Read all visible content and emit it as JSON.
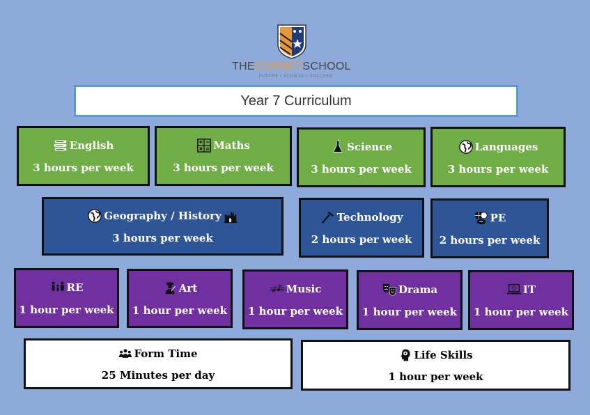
{
  "school": {
    "name_part1": "THE",
    "name_highlight": "CORBET",
    "name_part2": "SCHOOL",
    "tagline": "INSPIRE • ACHIEVE • SUCCEED"
  },
  "title": "Year 7 Curriculum",
  "colors": {
    "background": "#8eaadb",
    "core": "#70ad47",
    "humanities": "#2e5597",
    "arts": "#7030a0",
    "pastoral": "#ffffff"
  },
  "subjects": {
    "english": {
      "name": "English",
      "hours": "3 hours per week",
      "icon": "books-icon"
    },
    "maths": {
      "name": "Maths",
      "hours": "3 hours per week",
      "icon": "calculator-icon"
    },
    "science": {
      "name": "Science",
      "hours": "3 hours per week",
      "icon": "flask-icon"
    },
    "languages": {
      "name": "Languages",
      "hours": "3 hours per week",
      "icon": "globe-icon"
    },
    "geography_history": {
      "name": "Geography / History",
      "hours": "3 hours per week",
      "icon": "globe-castle-icon"
    },
    "technology": {
      "name": "Technology",
      "hours": "2 hours per week",
      "icon": "hammer-icon"
    },
    "pe": {
      "name": "PE",
      "hours": "2 hours per week",
      "icon": "balls-icon"
    },
    "re": {
      "name": "RE",
      "hours": "1 hour per week",
      "icon": "family-icon"
    },
    "art": {
      "name": "Art",
      "hours": "1 hour per week",
      "icon": "artist-icon"
    },
    "music": {
      "name": "Music",
      "hours": "1 hour per week",
      "icon": "music-notes-icon"
    },
    "drama": {
      "name": "Drama",
      "hours": "1 hour per week",
      "icon": "theatre-masks-icon"
    },
    "it": {
      "name": "IT",
      "hours": "1 hour per week",
      "icon": "laptop-icon"
    },
    "form_time": {
      "name": "Form Time",
      "hours": "25 Minutes per day",
      "icon": "group-icon"
    },
    "life_skills": {
      "name": "Life Skills",
      "hours": "1 hour per week",
      "icon": "head-brain-icon"
    }
  }
}
